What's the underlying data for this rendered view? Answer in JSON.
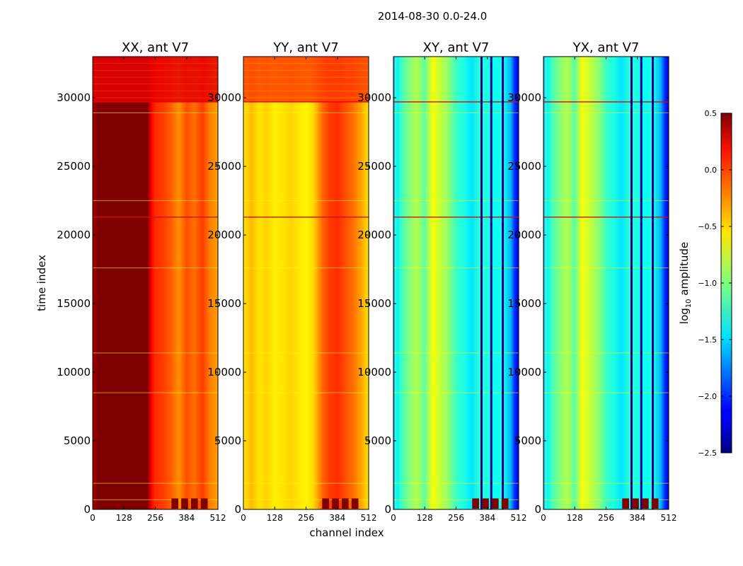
{
  "figure": {
    "suptitle": "2014-08-30 0.0-24.0",
    "xlabel": "channel index",
    "ylabel": "time index"
  },
  "chart_data": {
    "type": "heatmap",
    "title": "2014-08-30 0.0-24.0",
    "xlabel": "channel index",
    "ylabel": "time index",
    "xlim": [
      0,
      512
    ],
    "ylim": [
      0,
      33000
    ],
    "xticks": [
      0,
      128,
      256,
      384,
      512
    ],
    "yticks": [
      0,
      5000,
      10000,
      15000,
      20000,
      25000,
      30000
    ],
    "colormap": "jet",
    "colorbar": {
      "label": "log10 amplitude",
      "label_base": "log",
      "label_sub": "10",
      "label_rest": " amplitude",
      "range": [
        -2.5,
        0.5
      ],
      "ticks": [
        "0.5",
        "0.0",
        "−0.5",
        "−1.0",
        "−1.5",
        "−2.0",
        "−2.5"
      ],
      "tick_values": [
        0.5,
        0.0,
        -0.5,
        -1.0,
        -1.5,
        -2.0,
        -2.5
      ]
    },
    "panels": [
      {
        "title": "XX, ant V7",
        "profile": {
          "channels": [
            0,
            16,
            32,
            64,
            96,
            128,
            160,
            192,
            224,
            240,
            256,
            288,
            320,
            352,
            384,
            416,
            448,
            480,
            512
          ],
          "log10_amplitude": [
            0.35,
            0.5,
            0.5,
            0.5,
            0.5,
            0.5,
            0.5,
            0.5,
            0.5,
            0.15,
            0.0,
            -0.05,
            -0.15,
            -0.3,
            -0.1,
            -0.2,
            -0.05,
            -0.25,
            -0.35
          ]
        },
        "top_block_log10_amplitude": 0.2,
        "dark_columns": []
      },
      {
        "title": "YY, ant V7",
        "profile": {
          "channels": [
            0,
            16,
            32,
            64,
            96,
            128,
            160,
            192,
            224,
            256,
            288,
            320,
            352,
            384,
            416,
            448,
            480,
            512
          ],
          "log10_amplitude": [
            -0.55,
            -0.5,
            -0.42,
            -0.55,
            -0.5,
            -0.58,
            -0.55,
            -0.5,
            -0.55,
            -0.6,
            -0.5,
            -0.2,
            -0.05,
            0.0,
            -0.1,
            -0.2,
            -0.35,
            -0.55
          ]
        },
        "top_block_log10_amplitude": -0.05,
        "dark_columns": []
      },
      {
        "title": "XY, ant V7",
        "profile": {
          "channels": [
            0,
            8,
            16,
            32,
            64,
            96,
            128,
            160,
            192,
            224,
            256,
            288,
            320,
            352,
            384,
            416,
            448,
            480,
            496,
            512
          ],
          "log10_amplitude": [
            -1.8,
            -1.2,
            -1.4,
            -1.2,
            -1.0,
            -0.85,
            -1.1,
            -0.65,
            -0.8,
            -0.95,
            -1.2,
            -1.3,
            -1.45,
            -1.25,
            -1.3,
            -1.35,
            -1.3,
            -1.6,
            -2.0,
            -2.2
          ]
        },
        "top_block_log10_amplitude": null,
        "dark_columns": [
          360,
          400,
          447
        ]
      },
      {
        "title": "YX, ant V7",
        "profile": {
          "channels": [
            0,
            8,
            16,
            32,
            64,
            96,
            128,
            160,
            192,
            224,
            256,
            288,
            320,
            352,
            384,
            416,
            448,
            480,
            496,
            512
          ],
          "log10_amplitude": [
            -1.8,
            -1.2,
            -1.4,
            -1.2,
            -1.0,
            -0.85,
            -1.1,
            -0.65,
            -0.8,
            -0.95,
            -1.2,
            -1.3,
            -1.45,
            -1.25,
            -1.3,
            -1.35,
            -1.3,
            -1.6,
            -2.0,
            -2.2
          ]
        },
        "top_block_log10_amplitude": null,
        "dark_columns": [
          360,
          400,
          447
        ]
      }
    ],
    "horizontal_features": [
      {
        "time": 29700,
        "kind": "bright"
      },
      {
        "time": 28900,
        "kind": "faint"
      },
      {
        "time": 22500,
        "kind": "faint"
      },
      {
        "time": 21300,
        "kind": "red"
      },
      {
        "time": 17600,
        "kind": "faint"
      },
      {
        "time": 11400,
        "kind": "faint"
      },
      {
        "time": 8500,
        "kind": "faint"
      },
      {
        "time": 1900,
        "kind": "faint"
      },
      {
        "time": 700,
        "kind": "faint"
      }
    ],
    "hot_spot_band": {
      "time_range": [
        50,
        800
      ],
      "channels": [
        336,
        376,
        416,
        456
      ],
      "log10_amplitude": 0.5
    }
  }
}
